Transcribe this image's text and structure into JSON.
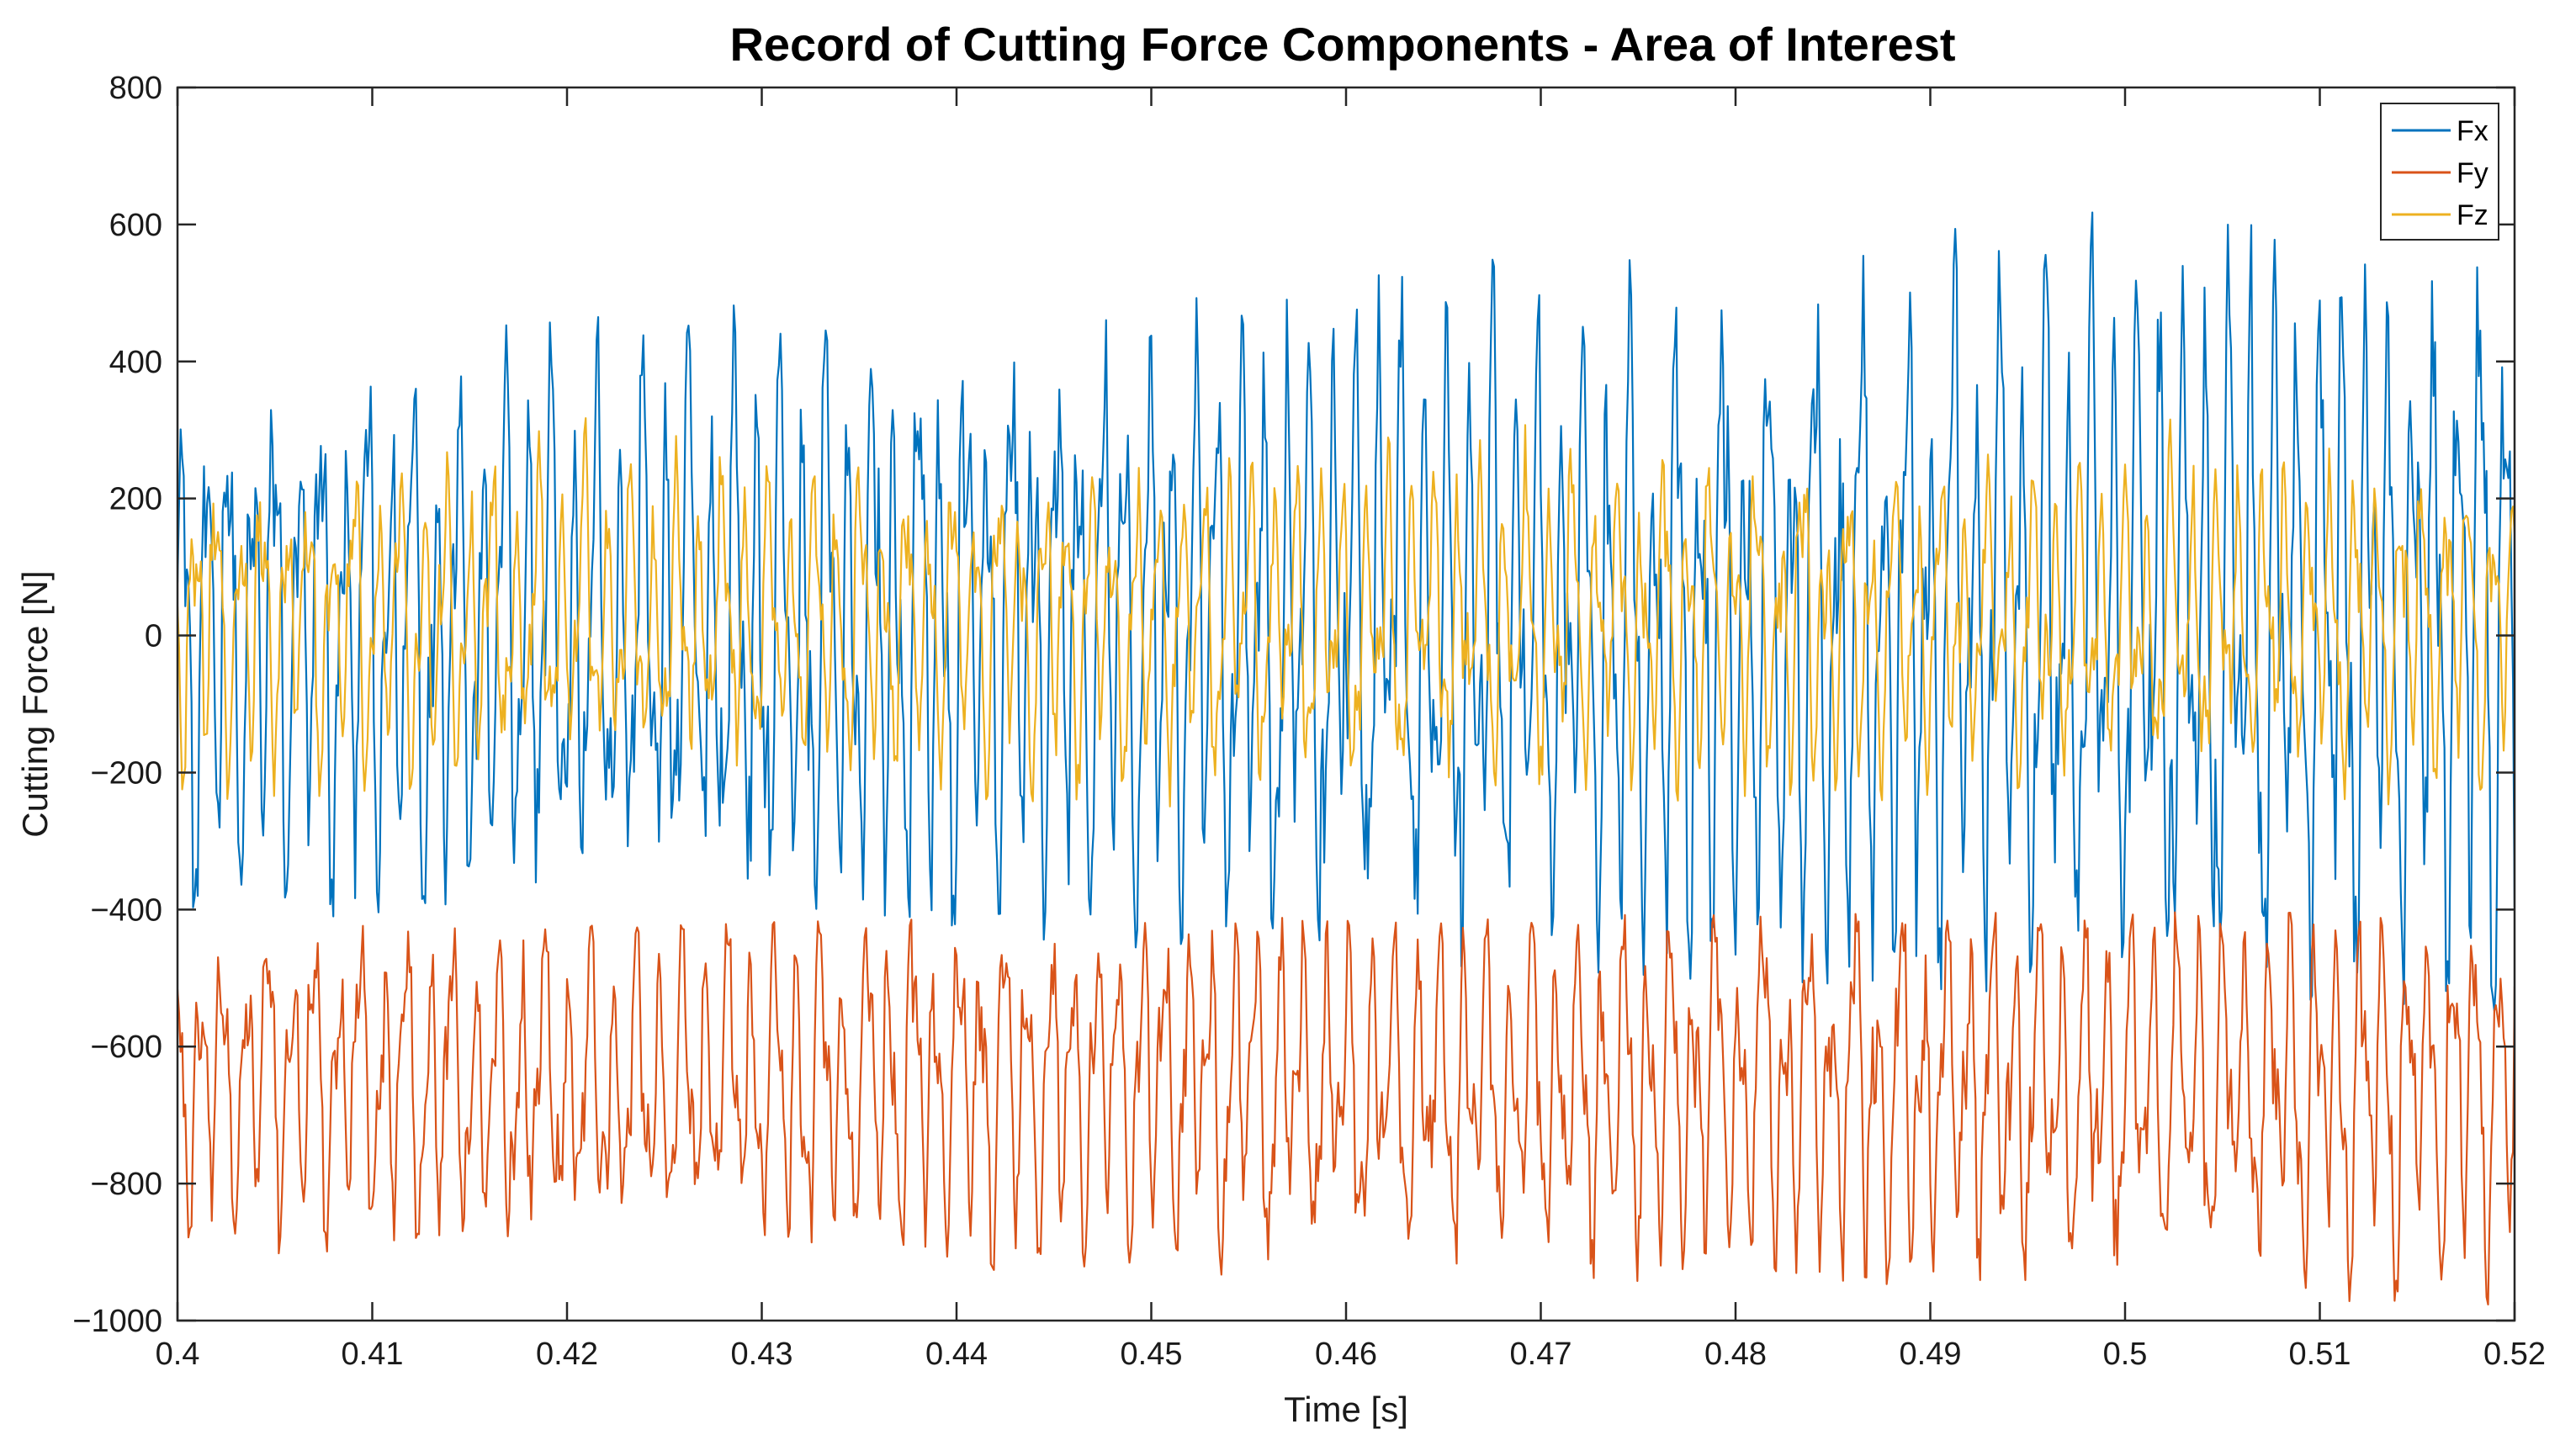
{
  "chart_data": {
    "type": "line",
    "title": "Record of Cutting Force Components - Area of Interest",
    "xlabel": "Time [s]",
    "ylabel": "Cutting Force [N]",
    "xlim": [
      0.4,
      0.52
    ],
    "ylim": [
      -1000,
      800
    ],
    "xticks": [
      0.4,
      0.41,
      0.42,
      0.43,
      0.44,
      0.45,
      0.46,
      0.47,
      0.48,
      0.49,
      0.5,
      0.51,
      0.52
    ],
    "xtick_labels": [
      "0.4",
      "0.41",
      "0.42",
      "0.43",
      "0.44",
      "0.45",
      "0.46",
      "0.47",
      "0.48",
      "0.49",
      "0.5",
      "0.51",
      "0.52"
    ],
    "yticks": [
      800,
      600,
      400,
      200,
      0,
      -200,
      -400,
      -600,
      -800,
      -1000
    ],
    "ytick_labels": [
      "800",
      "600",
      "400",
      "200",
      "0",
      "−200",
      "−400",
      "−600",
      "−800",
      "−1000"
    ],
    "grid": true,
    "legend_position": "top-right",
    "series": [
      {
        "name": "Fx",
        "color": "#0072BD",
        "signal": {
          "mean": {
            "start": 0,
            "end": 20
          },
          "amplitude": {
            "start": 400,
            "end": 590
          },
          "min_peak": {
            "start": -400,
            "end": -560
          },
          "max_peak": {
            "start": 430,
            "end": 660
          },
          "dominant_period": 0.00118,
          "sample_step": 8e-05
        }
      },
      {
        "name": "Fy",
        "color": "#D95319",
        "signal": {
          "mean": {
            "start": -650,
            "end": -660
          },
          "amplitude": {
            "start": 240,
            "end": 300
          },
          "min_peak": {
            "start": -900,
            "end": -980
          },
          "max_peak": {
            "start": -420,
            "end": -400
          },
          "dominant_period": 0.00118,
          "sample_step": 8e-05
        }
      },
      {
        "name": "Fz",
        "color": "#EDB120",
        "signal": {
          "mean": {
            "start": 20,
            "end": 20
          },
          "amplitude": {
            "start": 230,
            "end": 240
          },
          "min_peak": {
            "start": -250,
            "end": -250
          },
          "max_peak": {
            "start": 400,
            "end": 380
          },
          "dominant_period": 0.00118,
          "sample_step": 8e-05
        }
      }
    ]
  }
}
